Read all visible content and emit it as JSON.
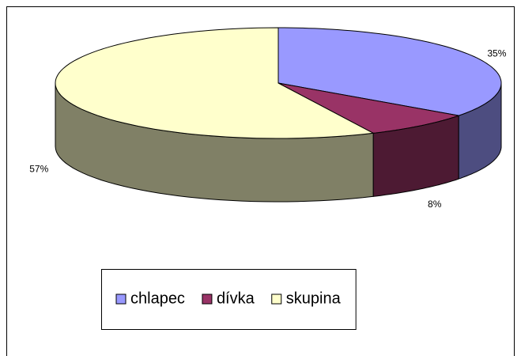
{
  "chart_data": {
    "type": "pie3d",
    "categories": [
      "chlapec",
      "dívka",
      "skupina"
    ],
    "values": [
      35,
      8,
      57
    ],
    "value_labels": [
      "35%",
      "8%",
      "57%"
    ],
    "colors": [
      "#9999ff",
      "#993366",
      "#ffffcc"
    ],
    "legend": "bottom"
  }
}
